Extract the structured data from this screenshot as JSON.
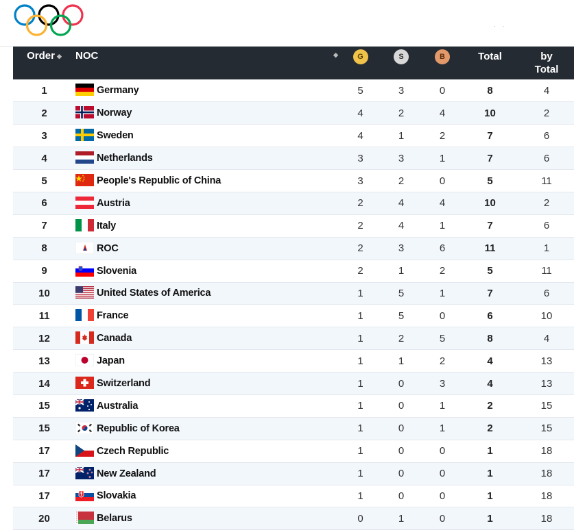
{
  "header": {
    "logo": "olympic-rings",
    "colors": {
      "header_bg": "#252b33",
      "row_alt": "#f2f7fc"
    }
  },
  "table": {
    "columns": {
      "order": "Order",
      "noc": "NOC",
      "gold": "G",
      "silver": "S",
      "bronze": "B",
      "total": "Total",
      "by_total_line1": "by",
      "by_total_line2": "Total"
    },
    "rows": [
      {
        "order": "1",
        "country": "Germany",
        "flag": "germany",
        "g": "5",
        "s": "3",
        "b": "0",
        "total": "8",
        "by_total": "4"
      },
      {
        "order": "2",
        "country": "Norway",
        "flag": "norway",
        "g": "4",
        "s": "2",
        "b": "4",
        "total": "10",
        "by_total": "2"
      },
      {
        "order": "3",
        "country": "Sweden",
        "flag": "sweden",
        "g": "4",
        "s": "1",
        "b": "2",
        "total": "7",
        "by_total": "6"
      },
      {
        "order": "4",
        "country": "Netherlands",
        "flag": "netherlands",
        "g": "3",
        "s": "3",
        "b": "1",
        "total": "7",
        "by_total": "6"
      },
      {
        "order": "5",
        "country": "People's Republic of China",
        "flag": "china",
        "g": "3",
        "s": "2",
        "b": "0",
        "total": "5",
        "by_total": "11"
      },
      {
        "order": "6",
        "country": "Austria",
        "flag": "austria",
        "g": "2",
        "s": "4",
        "b": "4",
        "total": "10",
        "by_total": "2"
      },
      {
        "order": "7",
        "country": "Italy",
        "flag": "italy",
        "g": "2",
        "s": "4",
        "b": "1",
        "total": "7",
        "by_total": "6"
      },
      {
        "order": "8",
        "country": "ROC",
        "flag": "roc",
        "g": "2",
        "s": "3",
        "b": "6",
        "total": "11",
        "by_total": "1"
      },
      {
        "order": "9",
        "country": "Slovenia",
        "flag": "slovenia",
        "g": "2",
        "s": "1",
        "b": "2",
        "total": "5",
        "by_total": "11"
      },
      {
        "order": "10",
        "country": "United States of America",
        "flag": "usa",
        "g": "1",
        "s": "5",
        "b": "1",
        "total": "7",
        "by_total": "6"
      },
      {
        "order": "11",
        "country": "France",
        "flag": "france",
        "g": "1",
        "s": "5",
        "b": "0",
        "total": "6",
        "by_total": "10"
      },
      {
        "order": "12",
        "country": "Canada",
        "flag": "canada",
        "g": "1",
        "s": "2",
        "b": "5",
        "total": "8",
        "by_total": "4"
      },
      {
        "order": "13",
        "country": "Japan",
        "flag": "japan",
        "g": "1",
        "s": "1",
        "b": "2",
        "total": "4",
        "by_total": "13"
      },
      {
        "order": "14",
        "country": "Switzerland",
        "flag": "switzerland",
        "g": "1",
        "s": "0",
        "b": "3",
        "total": "4",
        "by_total": "13"
      },
      {
        "order": "15",
        "country": "Australia",
        "flag": "australia",
        "g": "1",
        "s": "0",
        "b": "1",
        "total": "2",
        "by_total": "15"
      },
      {
        "order": "15",
        "country": "Republic of Korea",
        "flag": "korea",
        "g": "1",
        "s": "0",
        "b": "1",
        "total": "2",
        "by_total": "15"
      },
      {
        "order": "17",
        "country": "Czech Republic",
        "flag": "czech",
        "g": "1",
        "s": "0",
        "b": "0",
        "total": "1",
        "by_total": "18"
      },
      {
        "order": "17",
        "country": "New Zealand",
        "flag": "newzealand",
        "g": "1",
        "s": "0",
        "b": "0",
        "total": "1",
        "by_total": "18"
      },
      {
        "order": "17",
        "country": "Slovakia",
        "flag": "slovakia",
        "g": "1",
        "s": "0",
        "b": "0",
        "total": "1",
        "by_total": "18"
      },
      {
        "order": "20",
        "country": "Belarus",
        "flag": "belarus",
        "g": "0",
        "s": "1",
        "b": "0",
        "total": "1",
        "by_total": "18"
      }
    ]
  }
}
